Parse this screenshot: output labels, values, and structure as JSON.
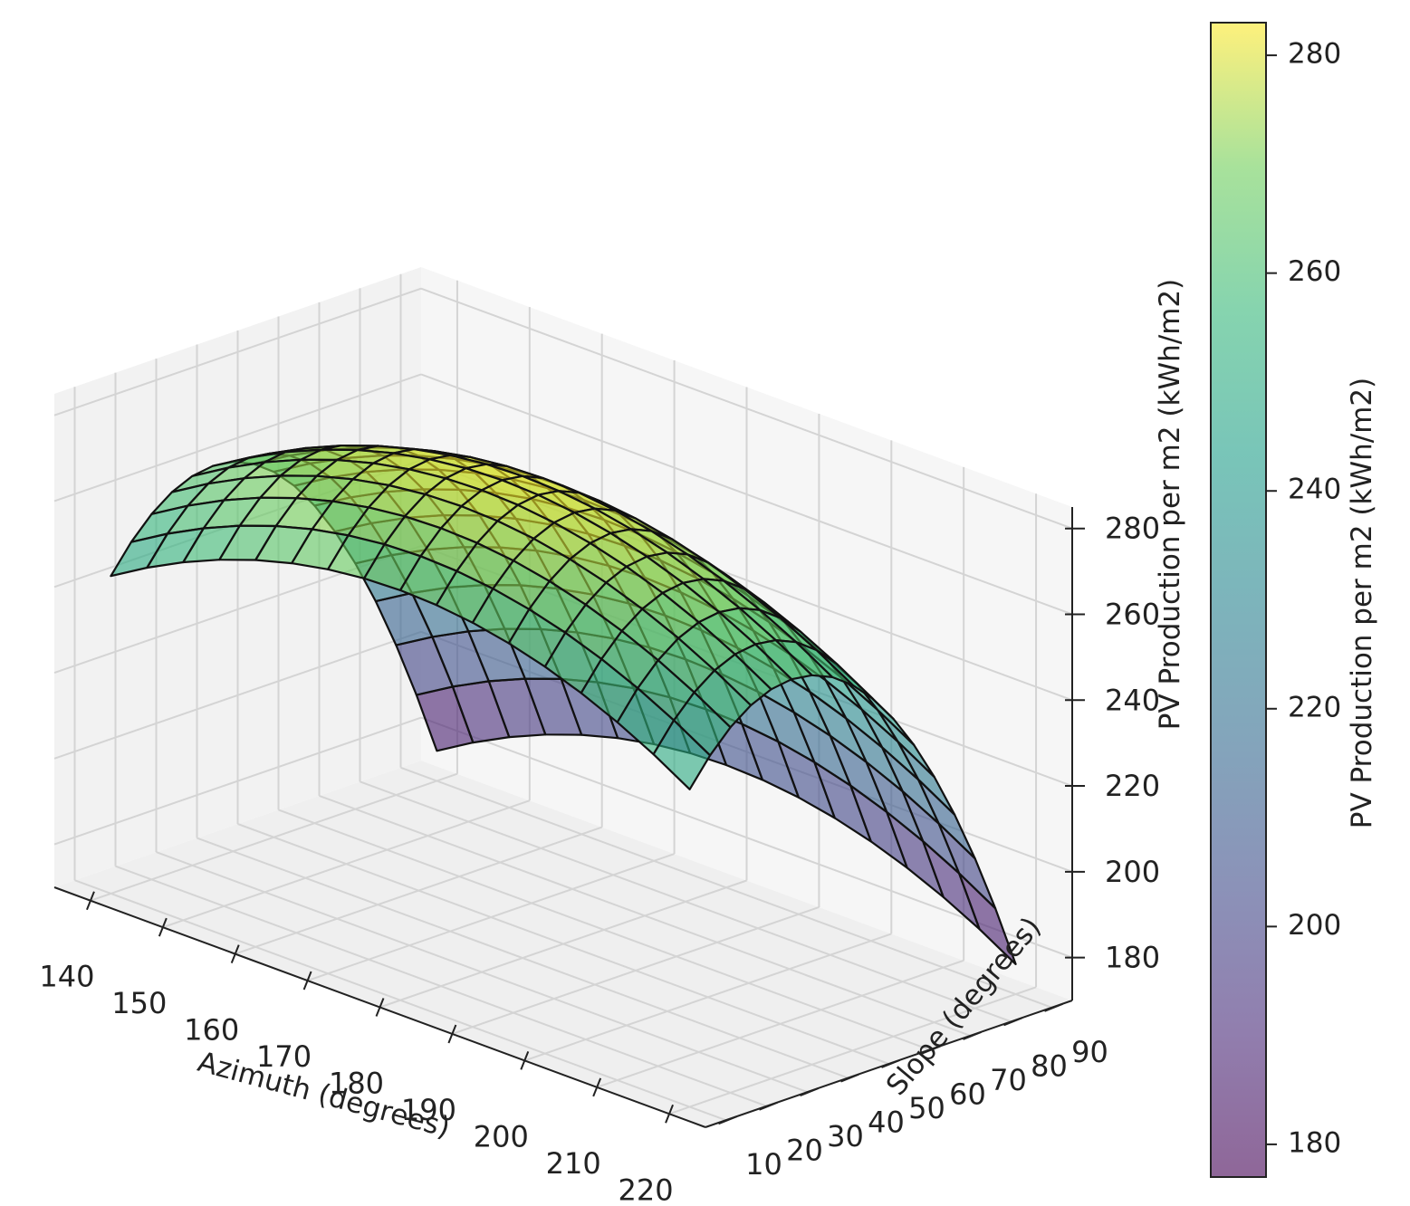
{
  "chart_data": {
    "type": "surface",
    "xlabel": "Azimuth (degrees)",
    "ylabel": "Slope (degrees)",
    "zlabel": "PV Production per m2 (kWh/m2)",
    "colorbar_label": "PV Production per m2 (kWh/m2)",
    "colormap": "viridis",
    "surface_alpha": 0.6,
    "grid": true,
    "xlim": [
      135,
      225
    ],
    "ylim": [
      5,
      95
    ],
    "zlim": [
      170,
      285
    ],
    "xticks": [
      "140",
      "150",
      "160",
      "170",
      "180",
      "190",
      "200",
      "210",
      "220"
    ],
    "yticks": [
      "10",
      "20",
      "30",
      "40",
      "50",
      "60",
      "70",
      "80",
      "90"
    ],
    "zticks": [
      "180",
      "200",
      "220",
      "240",
      "260",
      "280"
    ],
    "colorbar_ticks": [
      "180",
      "200",
      "220",
      "240",
      "260",
      "280"
    ],
    "colorbar_range": [
      177,
      283
    ],
    "azimuth_range": [
      140,
      220
    ],
    "slope_range": [
      10,
      90
    ],
    "grid_size": 17,
    "surface_model": {
      "description": "z = c + a*(s-s0)^2 + b*(az-180)^2",
      "peak_value": 283,
      "peak_slope": 35,
      "peak_azimuth": 180,
      "value_at_azimuth_140_slope_10": 244,
      "value_at_azimuth_220_slope_90": 177
    }
  }
}
